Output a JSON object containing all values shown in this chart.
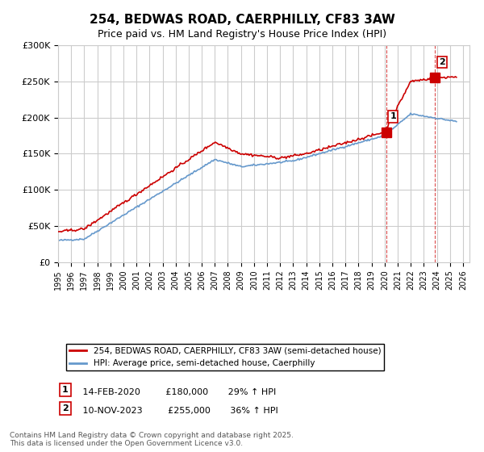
{
  "title": "254, BEDWAS ROAD, CAERPHILLY, CF83 3AW",
  "subtitle": "Price paid vs. HM Land Registry's House Price Index (HPI)",
  "ylabel_ticks": [
    "£0",
    "£50K",
    "£100K",
    "£150K",
    "£200K",
    "£250K",
    "£300K"
  ],
  "ylim": [
    0,
    300000
  ],
  "xlim_start": 1995.0,
  "xlim_end": 2026.5,
  "red_color": "#cc0000",
  "blue_color": "#6699cc",
  "marker1_date": 2020.11,
  "marker1_price": 180000,
  "marker1_label": "14-FEB-2020",
  "marker1_amount": "£180,000",
  "marker1_hpi": "29% ↑ HPI",
  "marker2_date": 2023.86,
  "marker2_price": 255000,
  "marker2_label": "10-NOV-2023",
  "marker2_amount": "£255,000",
  "marker2_hpi": "36% ↑ HPI",
  "legend_line1": "254, BEDWAS ROAD, CAERPHILLY, CF83 3AW (semi-detached house)",
  "legend_line2": "HPI: Average price, semi-detached house, Caerphilly",
  "footnote": "Contains HM Land Registry data © Crown copyright and database right 2025.\nThis data is licensed under the Open Government Licence v3.0.",
  "background_color": "#ffffff",
  "grid_color": "#cccccc"
}
